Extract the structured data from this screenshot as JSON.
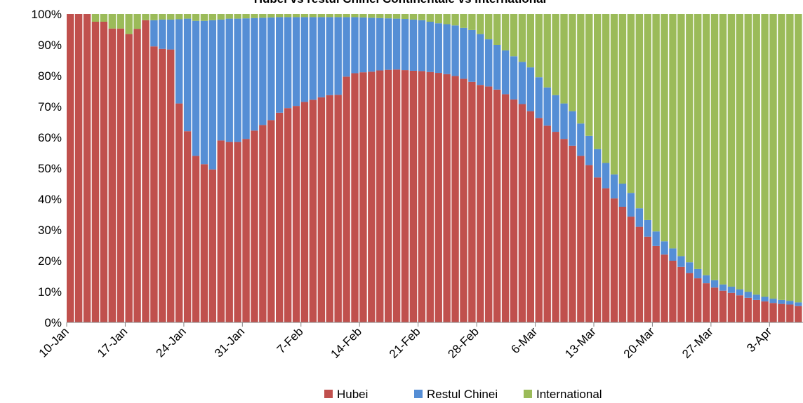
{
  "chart_data": {
    "type": "stacked_bar",
    "title": "Hubei vs restul Chinei Continentale vs International",
    "categories": [
      "10-Jan",
      null,
      null,
      null,
      null,
      null,
      null,
      "17-Jan",
      null,
      null,
      null,
      null,
      null,
      null,
      "24-Jan",
      null,
      null,
      null,
      null,
      null,
      null,
      "31-Jan",
      null,
      null,
      null,
      null,
      null,
      null,
      "7-Feb",
      null,
      null,
      null,
      null,
      null,
      null,
      "14-Feb",
      null,
      null,
      null,
      null,
      null,
      null,
      "21-Feb",
      null,
      null,
      null,
      null,
      null,
      null,
      "28-Feb",
      null,
      null,
      null,
      null,
      null,
      null,
      "6-Mar",
      null,
      null,
      null,
      null,
      null,
      null,
      "13-Mar",
      null,
      null,
      null,
      null,
      null,
      null,
      "20-Mar",
      null,
      null,
      null,
      null,
      null,
      null,
      "27-Mar",
      null,
      null,
      null,
      null,
      null,
      null,
      "3-Apr",
      null,
      null,
      null
    ],
    "series": [
      {
        "name": "Hubei",
        "color": "#c0504d",
        "values": [
          100,
          100,
          100,
          97.5,
          97.5,
          95.3,
          95.3,
          93.5,
          95.2,
          98,
          89.5,
          88.7,
          88.5,
          71,
          62,
          54,
          51.3,
          49.6,
          59,
          58.5,
          58.5,
          59.5,
          62.2,
          64,
          65.6,
          68,
          69.5,
          70.2,
          71.5,
          72.2,
          73,
          73.7,
          73.8,
          79.7,
          80.8,
          81.1,
          81.3,
          81.7,
          81.9,
          82,
          81.8,
          81.6,
          81.5,
          81.2,
          80.9,
          80.5,
          79.9,
          79,
          78,
          77,
          76.5,
          75.5,
          74,
          72.3,
          70.8,
          68.5,
          66.3,
          63.8,
          61.8,
          59.5,
          57.3,
          54,
          51,
          47,
          43.5,
          40.2,
          37.5,
          34.3,
          31,
          27.8,
          24.8,
          22,
          20,
          18,
          16,
          14.3,
          12.7,
          11.3,
          10.3,
          9.6,
          8.8,
          8,
          7.3,
          6.8,
          6.3,
          6,
          5.8,
          5.3
        ]
      },
      {
        "name": "Restul Chinei",
        "color": "#558ed5",
        "values": [
          0,
          0,
          0,
          0,
          0,
          0,
          0,
          0,
          0,
          0,
          8.5,
          9.5,
          9.7,
          27.3,
          36.5,
          43.8,
          46.5,
          48.4,
          39.2,
          40,
          40,
          39.1,
          36.5,
          34.8,
          33.3,
          31,
          29.5,
          28.8,
          27.5,
          26.8,
          26,
          25.3,
          25.2,
          19.3,
          18.2,
          17.8,
          17.5,
          17,
          16.7,
          16.5,
          16.6,
          16.6,
          16.5,
          16.3,
          16.1,
          16.2,
          16.4,
          16.5,
          16.8,
          16.5,
          15.3,
          14.5,
          14.2,
          14,
          13.7,
          14.2,
          13.2,
          12.4,
          11.9,
          11.5,
          11.2,
          10.5,
          9.5,
          9.2,
          8.2,
          7.8,
          7.5,
          7.7,
          6,
          5.4,
          4.7,
          4.3,
          4,
          3.5,
          3.5,
          3,
          2.6,
          2.4,
          2,
          2,
          1.9,
          1.9,
          1.7,
          1.5,
          1.4,
          1.3,
          1.2,
          1.2
        ]
      },
      {
        "name": "International",
        "color": "#9bbb59",
        "values": [
          0,
          0,
          0,
          2.5,
          2.5,
          4.7,
          4.7,
          6.5,
          4.8,
          2,
          2,
          1.8,
          1.8,
          1.7,
          1.5,
          2.2,
          2.2,
          2,
          1.8,
          1.5,
          1.5,
          1.4,
          1.3,
          1.2,
          1.1,
          1,
          1,
          1,
          1,
          1,
          1,
          1,
          1,
          1,
          1,
          1.1,
          1.2,
          1.3,
          1.4,
          1.5,
          1.6,
          1.8,
          2,
          2.5,
          3,
          3.3,
          3.7,
          4.5,
          5.2,
          6.5,
          8.2,
          10,
          11.8,
          13.7,
          15.5,
          17.3,
          20.5,
          23.8,
          26.3,
          29,
          31.5,
          35.5,
          39.5,
          43.8,
          48.3,
          52,
          55,
          58,
          63,
          66.8,
          70.5,
          73.7,
          76,
          78.5,
          80.5,
          82.7,
          84.7,
          86.3,
          87.7,
          88.4,
          89.3,
          90.1,
          91,
          91.7,
          92.3,
          92.7,
          93,
          93.5
        ]
      }
    ],
    "ylim": [
      0,
      100
    ],
    "yticks": [
      {
        "value": 0,
        "label": "0%"
      },
      {
        "value": 10,
        "label": "10%"
      },
      {
        "value": 20,
        "label": "20%"
      },
      {
        "value": 30,
        "label": "30%"
      },
      {
        "value": 40,
        "label": "40%"
      },
      {
        "value": 50,
        "label": "50%"
      },
      {
        "value": 60,
        "label": "60%"
      },
      {
        "value": 70,
        "label": "70%"
      },
      {
        "value": 80,
        "label": "80%"
      },
      {
        "value": 90,
        "label": "90%"
      },
      {
        "value": 100,
        "label": "100%"
      }
    ],
    "legend": "bottom"
  }
}
